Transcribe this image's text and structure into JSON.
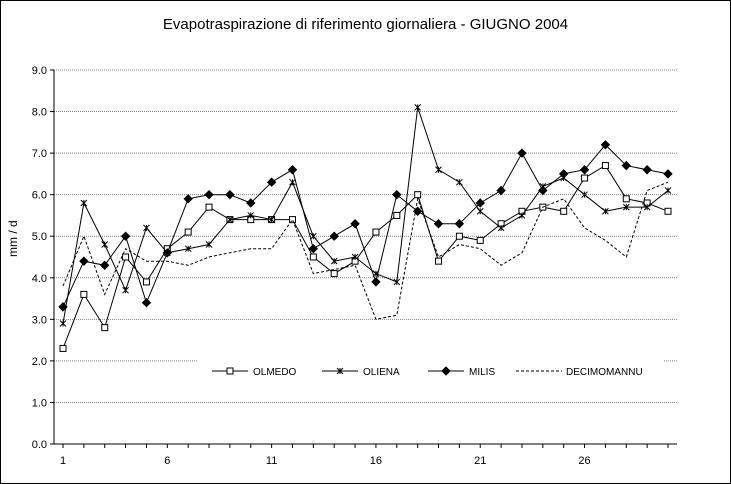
{
  "chart_data": {
    "type": "line",
    "title": "Evapotraspirazione di riferimento giornaliera - GIUGNO 2004",
    "ylabel": "mm / d",
    "xlabel": "",
    "ylim": [
      0,
      9
    ],
    "xlim": [
      1,
      30
    ],
    "y_ticks": [
      "0.0",
      "1.0",
      "2.0",
      "3.0",
      "4.0",
      "5.0",
      "6.0",
      "7.0",
      "8.0",
      "9.0"
    ],
    "x_ticks": [
      "1",
      "6",
      "11",
      "16",
      "21",
      "26"
    ],
    "grid": "horizontal",
    "legend_position": "bottom-center",
    "x": [
      1,
      2,
      3,
      4,
      5,
      6,
      7,
      8,
      9,
      10,
      11,
      12,
      13,
      14,
      15,
      16,
      17,
      18,
      19,
      20,
      21,
      22,
      23,
      24,
      25,
      26,
      27,
      28,
      29,
      30
    ],
    "series": [
      {
        "name": "OLMEDO",
        "marker": "square-open",
        "dash": "solid",
        "values": [
          2.3,
          3.6,
          2.8,
          4.5,
          3.9,
          4.7,
          5.1,
          5.7,
          5.4,
          5.4,
          5.4,
          5.4,
          4.5,
          4.1,
          4.4,
          5.1,
          5.5,
          6.0,
          4.4,
          5.0,
          4.9,
          5.3,
          5.6,
          5.7,
          5.6,
          6.4,
          6.7,
          5.9,
          5.8,
          5.6
        ]
      },
      {
        "name": "OLIENA",
        "marker": "star",
        "dash": "solid",
        "values": [
          2.9,
          5.8,
          4.8,
          3.7,
          5.2,
          4.6,
          4.7,
          4.8,
          5.4,
          5.5,
          5.4,
          6.3,
          5.0,
          4.4,
          4.5,
          4.1,
          3.9,
          8.1,
          6.6,
          6.3,
          5.6,
          5.2,
          5.5,
          6.2,
          6.4,
          6.0,
          5.6,
          5.7,
          5.7,
          6.1
        ]
      },
      {
        "name": "MILIS",
        "marker": "diamond-filled",
        "dash": "solid",
        "values": [
          3.3,
          4.4,
          4.3,
          5.0,
          3.4,
          4.6,
          5.9,
          6.0,
          6.0,
          5.8,
          6.3,
          6.6,
          4.7,
          5.0,
          5.3,
          3.9,
          6.0,
          5.6,
          5.3,
          5.3,
          5.8,
          6.1,
          7.0,
          6.1,
          6.5,
          6.6,
          7.2,
          6.7,
          6.6,
          6.5
        ]
      },
      {
        "name": "DECIMOMANNU",
        "marker": "none",
        "dash": "dashed",
        "values": [
          3.8,
          5.0,
          3.6,
          4.7,
          4.4,
          4.4,
          4.3,
          4.5,
          4.6,
          4.7,
          4.7,
          5.4,
          4.1,
          4.2,
          4.3,
          3.0,
          3.1,
          5.9,
          4.5,
          4.8,
          4.7,
          4.3,
          4.6,
          5.7,
          5.9,
          5.2,
          4.9,
          4.5,
          6.1,
          6.3
        ]
      }
    ]
  }
}
